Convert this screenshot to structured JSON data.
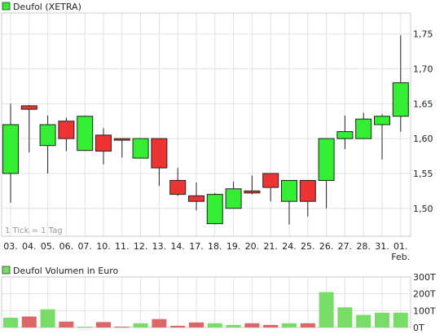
{
  "chart_data": [
    {
      "type": "candlestick",
      "legend": "Deufol (XETRA)",
      "note": "1 Tick = 1 Tag",
      "ylim": [
        1.46,
        1.78
      ],
      "y_ticks": [
        "1,75",
        "1,70",
        "1,65",
        "1,60",
        "1,55",
        "1,50"
      ],
      "y_tick_values": [
        1.75,
        1.7,
        1.65,
        1.6,
        1.55,
        1.5
      ],
      "categories": [
        "03.",
        "04.",
        "05.",
        "06.",
        "07.",
        "10.",
        "11.",
        "12.",
        "13.",
        "14.",
        "17.",
        "18.",
        "19.",
        "20.",
        "21.",
        "24.",
        "25.",
        "26.",
        "27.",
        "28.",
        "31.",
        "01."
      ],
      "category_sub": {
        "21": "Feb."
      },
      "candles": [
        {
          "open": 1.55,
          "close": 1.62,
          "high": 1.65,
          "low": 1.508
        },
        {
          "open": 1.647,
          "close": 1.642,
          "high": 1.648,
          "low": 1.58
        },
        {
          "open": 1.59,
          "close": 1.62,
          "high": 1.633,
          "low": 1.55
        },
        {
          "open": 1.625,
          "close": 1.6,
          "high": 1.63,
          "low": 1.582
        },
        {
          "open": 1.583,
          "close": 1.632,
          "high": 1.633,
          "low": 1.583
        },
        {
          "open": 1.605,
          "close": 1.582,
          "high": 1.615,
          "low": 1.563
        },
        {
          "open": 1.6,
          "close": 1.599,
          "high": 1.6,
          "low": 1.573
        },
        {
          "open": 1.572,
          "close": 1.6,
          "high": 1.6,
          "low": 1.572
        },
        {
          "open": 1.6,
          "close": 1.558,
          "high": 1.6,
          "low": 1.532
        },
        {
          "open": 1.54,
          "close": 1.52,
          "high": 1.558,
          "low": 1.518
        },
        {
          "open": 1.518,
          "close": 1.51,
          "high": 1.537,
          "low": 1.497
        },
        {
          "open": 1.478,
          "close": 1.52,
          "high": 1.522,
          "low": 1.477
        },
        {
          "open": 1.5,
          "close": 1.528,
          "high": 1.538,
          "low": 1.5
        },
        {
          "open": 1.525,
          "close": 1.522,
          "high": 1.547,
          "low": 1.52
        },
        {
          "open": 1.55,
          "close": 1.53,
          "high": 1.55,
          "low": 1.51
        },
        {
          "open": 1.51,
          "close": 1.54,
          "high": 1.54,
          "low": 1.477
        },
        {
          "open": 1.54,
          "close": 1.51,
          "high": 1.54,
          "low": 1.488
        },
        {
          "open": 1.54,
          "close": 1.6,
          "high": 1.6,
          "low": 1.5
        },
        {
          "open": 1.6,
          "close": 1.61,
          "high": 1.633,
          "low": 1.585
        },
        {
          "open": 1.6,
          "close": 1.628,
          "high": 1.637,
          "low": 1.6
        },
        {
          "open": 1.62,
          "close": 1.632,
          "high": 1.635,
          "low": 1.57
        },
        {
          "open": 1.632,
          "close": 1.68,
          "high": 1.748,
          "low": 1.61
        }
      ]
    },
    {
      "type": "bar",
      "legend": "Deufol Volumen in Euro",
      "ylim": [
        0,
        300
      ],
      "y_ticks": [
        "300T",
        "200T",
        "100T",
        "0T"
      ],
      "y_tick_values": [
        300,
        200,
        100,
        0
      ],
      "unit": "thousand EUR",
      "values": [
        58,
        65,
        108,
        35,
        5,
        32,
        5,
        25,
        50,
        10,
        30,
        25,
        15,
        25,
        15,
        25,
        25,
        210,
        120,
        75,
        88,
        88
      ],
      "direction": [
        "up",
        "down",
        "up",
        "down",
        "up",
        "down",
        "down",
        "up",
        "down",
        "down",
        "down",
        "up",
        "up",
        "down",
        "down",
        "up",
        "down",
        "up",
        "up",
        "up",
        "up",
        "up"
      ]
    }
  ],
  "colors": {
    "up": "#33ee33",
    "down": "#ee3333",
    "vol_up": "#77dd66",
    "vol_down": "#dd6666",
    "grid": "#e2e2e2",
    "frame": "#cccccc",
    "text": "#222222"
  }
}
